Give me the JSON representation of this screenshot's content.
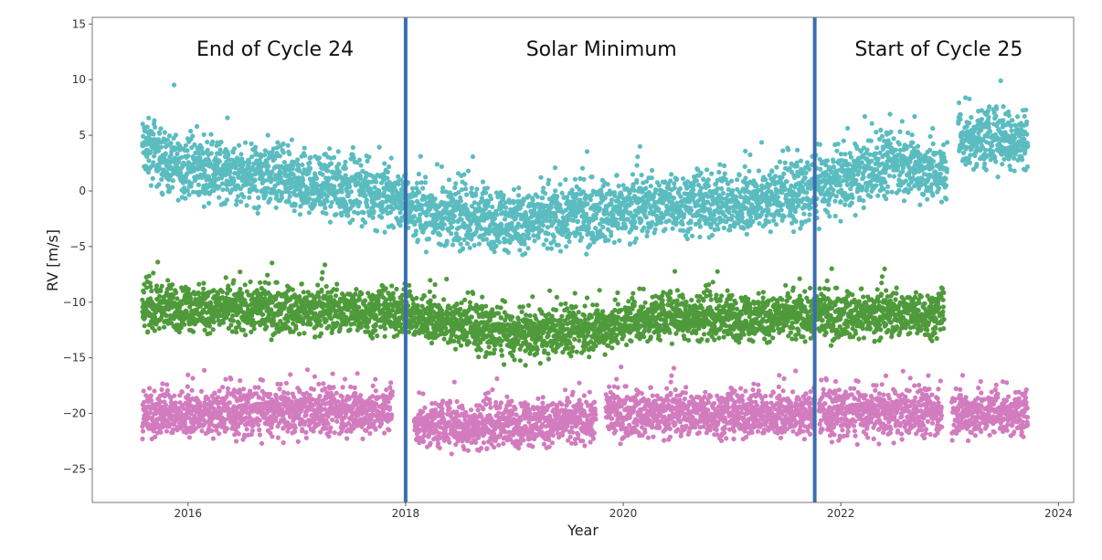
{
  "chart_data": {
    "type": "scatter",
    "title": "",
    "xlabel": "Year",
    "ylabel": "RV [m/s]",
    "xlim": [
      2015.12,
      2024.14
    ],
    "ylim": [
      -28.0,
      15.6
    ],
    "xticks": [
      2016,
      2018,
      2020,
      2022,
      2024
    ],
    "yticks": [
      15,
      10,
      5,
      0,
      -5,
      -10,
      -15,
      -20,
      -25
    ],
    "grid": false,
    "vlines": [
      {
        "x": 2018.0,
        "color": "#3a6db0"
      },
      {
        "x": 2021.76,
        "color": "#3a6db0"
      }
    ],
    "annotations": [
      {
        "text": "End of Cycle 24",
        "x": 2016.8,
        "y": 12.8
      },
      {
        "text": "Solar Minimum",
        "x": 2019.8,
        "y": 12.8
      },
      {
        "text": "Start of Cycle 25",
        "x": 2022.9,
        "y": 12.8
      }
    ],
    "series": [
      {
        "name": "cyan",
        "color": "#5bbcc0",
        "segments": [
          [
            2015.58,
            2022.98
          ],
          [
            2023.08,
            2023.72
          ]
        ],
        "trend": [
          [
            2015.58,
            4.0
          ],
          [
            2015.8,
            2.5
          ],
          [
            2016.5,
            1.5
          ],
          [
            2017.2,
            0.5
          ],
          [
            2017.9,
            -0.5
          ],
          [
            2018.2,
            -2.0
          ],
          [
            2019.0,
            -2.8
          ],
          [
            2019.7,
            -2.0
          ],
          [
            2020.5,
            -1.0
          ],
          [
            2021.0,
            -1.2
          ],
          [
            2021.7,
            0.0
          ],
          [
            2022.5,
            2.5
          ],
          [
            2022.98,
            1.5
          ],
          [
            2023.08,
            4.5
          ],
          [
            2023.72,
            5.0
          ]
        ],
        "spread": 2.4
      },
      {
        "name": "green",
        "color": "#4f9a3b",
        "segments": [
          [
            2015.58,
            2022.95
          ]
        ],
        "trend": [
          [
            2015.58,
            -10.5
          ],
          [
            2017.9,
            -10.8
          ],
          [
            2018.5,
            -12.0
          ],
          [
            2019.0,
            -13.0
          ],
          [
            2019.7,
            -12.5
          ],
          [
            2020.5,
            -11.0
          ],
          [
            2021.0,
            -11.5
          ],
          [
            2021.7,
            -11.2
          ],
          [
            2022.95,
            -11.0
          ]
        ],
        "spread": 1.8
      },
      {
        "name": "pink",
        "color": "#d27cbf",
        "segments": [
          [
            2015.58,
            2017.88
          ],
          [
            2018.08,
            2019.75
          ],
          [
            2019.84,
            2021.76
          ],
          [
            2021.8,
            2022.93
          ],
          [
            2023.02,
            2023.72
          ]
        ],
        "trend": [
          [
            2015.58,
            -20.0
          ],
          [
            2017.88,
            -19.8
          ],
          [
            2018.08,
            -21.0
          ],
          [
            2019.0,
            -21.0
          ],
          [
            2019.75,
            -20.5
          ],
          [
            2019.84,
            -20.0
          ],
          [
            2021.76,
            -20.0
          ],
          [
            2022.93,
            -20.0
          ],
          [
            2023.72,
            -20.0
          ]
        ],
        "spread": 1.8
      }
    ]
  }
}
